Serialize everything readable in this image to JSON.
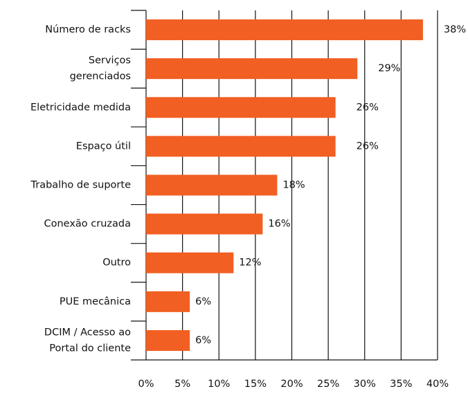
{
  "chart_data": {
    "type": "barh",
    "categories": [
      "Número de racks",
      "Serviços\ngerenciados",
      "Eletricidade medida",
      "Espaço útil",
      "Trabalho de suporte",
      "Conexão cruzada",
      "Outro",
      "PUE mecânica",
      "DCIM / Acesso ao\nPortal do cliente"
    ],
    "values": [
      38,
      29,
      26,
      26,
      18,
      16,
      12,
      6,
      6
    ],
    "value_labels": [
      "38%",
      "29%",
      "26%",
      "26%",
      "18%",
      "16%",
      "12%",
      "6%",
      "6%"
    ],
    "color": "#f15f22",
    "xlim": [
      0,
      40
    ],
    "xticks": [
      {
        "value": 0,
        "label": "0%"
      },
      {
        "value": 5,
        "label": "5%"
      },
      {
        "value": 10,
        "label": "10%"
      },
      {
        "value": 15,
        "label": "15%"
      },
      {
        "value": 20,
        "label": "20%"
      },
      {
        "value": 25,
        "label": "25%"
      },
      {
        "value": 30,
        "label": "30%"
      },
      {
        "value": 35,
        "label": "35%"
      },
      {
        "value": 40,
        "label": "40%"
      }
    ],
    "grid": true
  }
}
